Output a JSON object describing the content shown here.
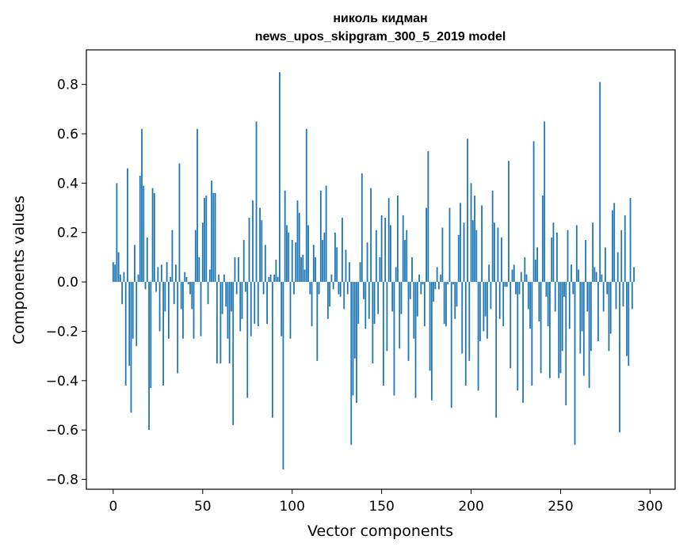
{
  "chart_data": {
    "type": "bar",
    "title": "николь кидман",
    "subtitle": "news_upos_skipgram_300_5_2019 model",
    "xlabel": "Vector components",
    "ylabel": "Components values",
    "xlim": [
      -15,
      314
    ],
    "ylim": [
      -0.84,
      0.94
    ],
    "x_ticks": [
      0,
      50,
      100,
      150,
      200,
      250,
      300
    ],
    "y_ticks": [
      -0.8,
      -0.6,
      -0.4,
      -0.2,
      0.0,
      0.2,
      0.4,
      0.6,
      0.8
    ],
    "y_tick_labels": [
      "−0.8",
      "−0.6",
      "−0.4",
      "−0.2",
      "0.0",
      "0.2",
      "0.4",
      "0.6",
      "0.8"
    ],
    "bar_color": "#1f77b4",
    "grid": false,
    "values": [
      0.08,
      0.07,
      0.4,
      0.12,
      0.03,
      -0.09,
      0.04,
      -0.42,
      0.46,
      -0.34,
      -0.53,
      -0.23,
      0.15,
      -0.26,
      0.03,
      0.43,
      0.62,
      0.39,
      -0.03,
      0.18,
      -0.6,
      -0.43,
      0.38,
      0.36,
      -0.04,
      0.06,
      -0.2,
      0.07,
      -0.42,
      -0.12,
      0.08,
      -0.23,
      0.02,
      0.21,
      -0.09,
      0.07,
      -0.37,
      0.48,
      -0.11,
      -0.23,
      0.04,
      0.02,
      -0.01,
      -0.05,
      -0.11,
      -0.23,
      0.21,
      0.62,
      0.1,
      -0.22,
      0.24,
      0.34,
      0.35,
      -0.09,
      0.05,
      0.41,
      0.36,
      0.36,
      -0.33,
      0.03,
      -0.33,
      -0.13,
      0.03,
      -0.1,
      -0.23,
      -0.33,
      -0.12,
      -0.58,
      0.1,
      -0.05,
      0.1,
      -0.2,
      -0.15,
      0.17,
      -0.04,
      -0.47,
      0.26,
      -0.22,
      0.33,
      -0.17,
      0.65,
      -0.18,
      0.3,
      0.25,
      -0.05,
      0.15,
      -0.17,
      0.02,
      0.03,
      -0.55,
      0.03,
      0.09,
      0.02,
      0.85,
      -0.22,
      -0.76,
      0.37,
      0.23,
      0.2,
      -0.23,
      0.17,
      -0.05,
      0.16,
      0.33,
      0.28,
      0.1,
      0.11,
      0.05,
      0.62,
      0.23,
      -0.05,
      -0.18,
      0.15,
      0.1,
      -0.32,
      -0.05,
      0.37,
      0.17,
      0.2,
      0.39,
      -0.15,
      -0.1,
      0.03,
      -0.03,
      0.2,
      0.14,
      -0.05,
      -0.06,
      0.26,
      -0.11,
      0.13,
      -0.05,
      0.08,
      -0.66,
      -0.46,
      -0.31,
      -0.49,
      -0.17,
      0.08,
      0.44,
      -0.07,
      -0.19,
      0.16,
      -0.15,
      0.38,
      -0.33,
      -0.17,
      0.21,
      -0.13,
      0.1,
      0.27,
      -0.42,
      0.26,
      -0.28,
      0.34,
      0.23,
      -0.12,
      -0.46,
      0.06,
      0.35,
      -0.27,
      -0.13,
      0.27,
      0.17,
      0.21,
      -0.32,
      -0.07,
      0.1,
      -0.23,
      -0.47,
      -0.14,
      0.03,
      -0.05,
      -0.01,
      -0.18,
      0.3,
      0.53,
      -0.36,
      -0.48,
      -0.08,
      -0.03,
      0.06,
      -0.03,
      0.03,
      0.22,
      -0.17,
      -0.18,
      -0.01,
      0.3,
      -0.51,
      -0.01,
      -0.15,
      -0.1,
      0.19,
      0.32,
      -0.29,
      0.24,
      -0.42,
      0.58,
      -0.32,
      0.4,
      0.25,
      0.35,
      0.21,
      -0.44,
      -0.24,
      0.31,
      -0.2,
      -0.14,
      -0.23,
      0.07,
      -0.11,
      0.37,
      0.24,
      -0.55,
      0.22,
      -0.15,
      0.18,
      -0.18,
      -0.02,
      -0.02,
      0.49,
      -0.35,
      0.05,
      0.07,
      -0.05,
      -0.44,
      -0.05,
      0.04,
      -0.49,
      0.1,
      0.03,
      -0.11,
      -0.19,
      -0.42,
      0.57,
      0.09,
      0.14,
      -0.16,
      -0.37,
      0.35,
      0.65,
      -0.06,
      -0.18,
      -0.39,
      0.18,
      0.24,
      -0.12,
      0.2,
      -0.39,
      -0.37,
      -0.28,
      -0.06,
      -0.5,
      0.21,
      -0.19,
      0.07,
      -0.05,
      -0.66,
      0.23,
      0.05,
      -0.29,
      -0.2,
      -0.38,
      0.17,
      -0.12,
      -0.43,
      -0.28,
      0.24,
      0.06,
      0.04,
      -0.24,
      0.81,
      0.03,
      -0.12,
      0.14,
      -0.05,
      -0.28,
      -0.21,
      0.29,
      0.32,
      -0.11,
      0.12,
      -0.61,
      0.21,
      -0.1,
      0.27,
      -0.3,
      -0.34,
      0.34,
      -0.11,
      0.06
    ]
  }
}
